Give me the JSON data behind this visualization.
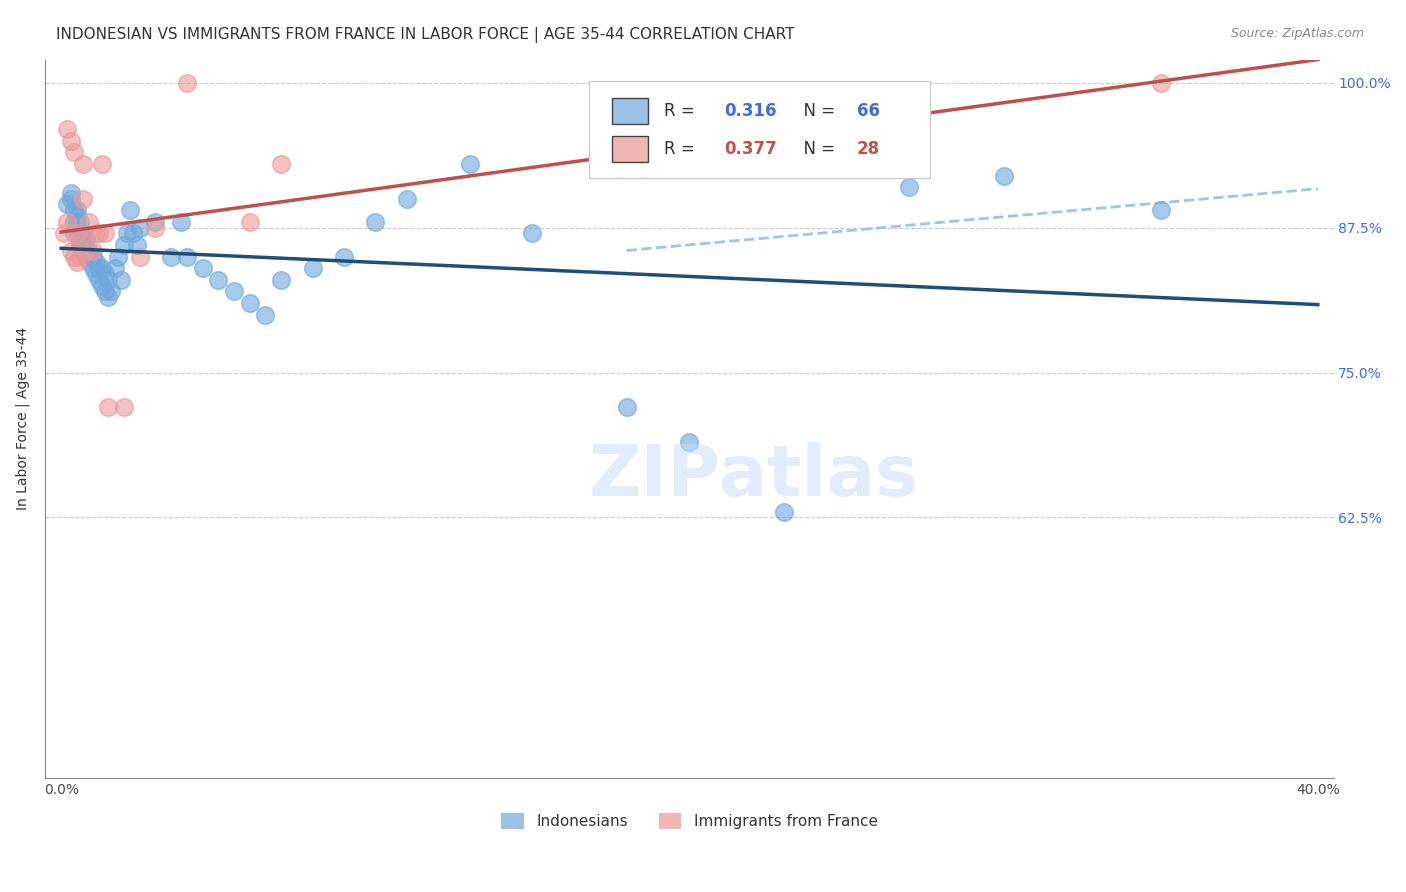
{
  "title": "INDONESIAN VS IMMIGRANTS FROM FRANCE IN LABOR FORCE | AGE 35-44 CORRELATION CHART",
  "source": "Source: ZipAtlas.com",
  "xlabel_bottom": "",
  "ylabel": "In Labor Force | Age 35-44",
  "x_min": 0.0,
  "x_max": 0.4,
  "y_min": 0.4,
  "y_max": 1.02,
  "x_ticks": [
    0.0,
    0.05,
    0.1,
    0.15,
    0.2,
    0.25,
    0.3,
    0.35,
    0.4
  ],
  "x_tick_labels": [
    "0.0%",
    "",
    "",
    "",
    "",
    "",
    "",
    "",
    "40.0%"
  ],
  "y_ticks": [
    0.625,
    0.75,
    0.875,
    1.0
  ],
  "y_tick_labels": [
    "62.5%",
    "75.0%",
    "87.5%",
    "100.0%"
  ],
  "legend_r1": "R = 0.316",
  "legend_n1": "N = 66",
  "legend_r2": "R = 0.377",
  "legend_n2": "N = 28",
  "blue_color": "#6fa8dc",
  "pink_color": "#ea9999",
  "blue_line_color": "#1f4e79",
  "pink_line_color": "#c0504d",
  "dashed_line_color": "#9fc5e8",
  "watermark_color": "#c9daf8",
  "indonesians_x": [
    0.002,
    0.003,
    0.003,
    0.004,
    0.004,
    0.004,
    0.005,
    0.005,
    0.005,
    0.005,
    0.006,
    0.006,
    0.006,
    0.006,
    0.007,
    0.007,
    0.007,
    0.008,
    0.008,
    0.008,
    0.009,
    0.009,
    0.01,
    0.01,
    0.011,
    0.011,
    0.012,
    0.012,
    0.013,
    0.013,
    0.014,
    0.014,
    0.015,
    0.015,
    0.016,
    0.017,
    0.018,
    0.019,
    0.02,
    0.021,
    0.022,
    0.023,
    0.024,
    0.025,
    0.03,
    0.035,
    0.038,
    0.04,
    0.045,
    0.05,
    0.055,
    0.06,
    0.065,
    0.07,
    0.08,
    0.09,
    0.1,
    0.11,
    0.13,
    0.15,
    0.18,
    0.2,
    0.23,
    0.27,
    0.3,
    0.35
  ],
  "indonesians_y": [
    0.895,
    0.9,
    0.905,
    0.87,
    0.88,
    0.89,
    0.875,
    0.88,
    0.885,
    0.89,
    0.86,
    0.865,
    0.87,
    0.88,
    0.855,
    0.86,
    0.87,
    0.85,
    0.855,
    0.865,
    0.845,
    0.855,
    0.84,
    0.85,
    0.835,
    0.845,
    0.83,
    0.84,
    0.825,
    0.84,
    0.82,
    0.835,
    0.815,
    0.83,
    0.82,
    0.84,
    0.85,
    0.83,
    0.86,
    0.87,
    0.89,
    0.87,
    0.86,
    0.875,
    0.88,
    0.85,
    0.88,
    0.85,
    0.84,
    0.83,
    0.82,
    0.81,
    0.8,
    0.83,
    0.84,
    0.85,
    0.88,
    0.9,
    0.93,
    0.87,
    0.72,
    0.69,
    0.63,
    0.91,
    0.92,
    0.89
  ],
  "france_x": [
    0.001,
    0.002,
    0.002,
    0.003,
    0.003,
    0.004,
    0.004,
    0.005,
    0.005,
    0.006,
    0.006,
    0.007,
    0.007,
    0.008,
    0.009,
    0.01,
    0.011,
    0.012,
    0.013,
    0.014,
    0.015,
    0.02,
    0.025,
    0.03,
    0.04,
    0.06,
    0.07,
    0.35
  ],
  "france_y": [
    0.87,
    0.88,
    0.96,
    0.855,
    0.95,
    0.85,
    0.94,
    0.845,
    0.87,
    0.85,
    0.865,
    0.9,
    0.93,
    0.855,
    0.88,
    0.855,
    0.87,
    0.87,
    0.93,
    0.87,
    0.72,
    0.72,
    0.85,
    0.875,
    1.0,
    0.88,
    0.93,
    1.0
  ],
  "title_fontsize": 11,
  "source_fontsize": 9,
  "axis_label_fontsize": 10,
  "tick_fontsize": 10,
  "legend_fontsize": 11,
  "watermark_text": "ZIPatlas",
  "watermark_fontsize": 52
}
